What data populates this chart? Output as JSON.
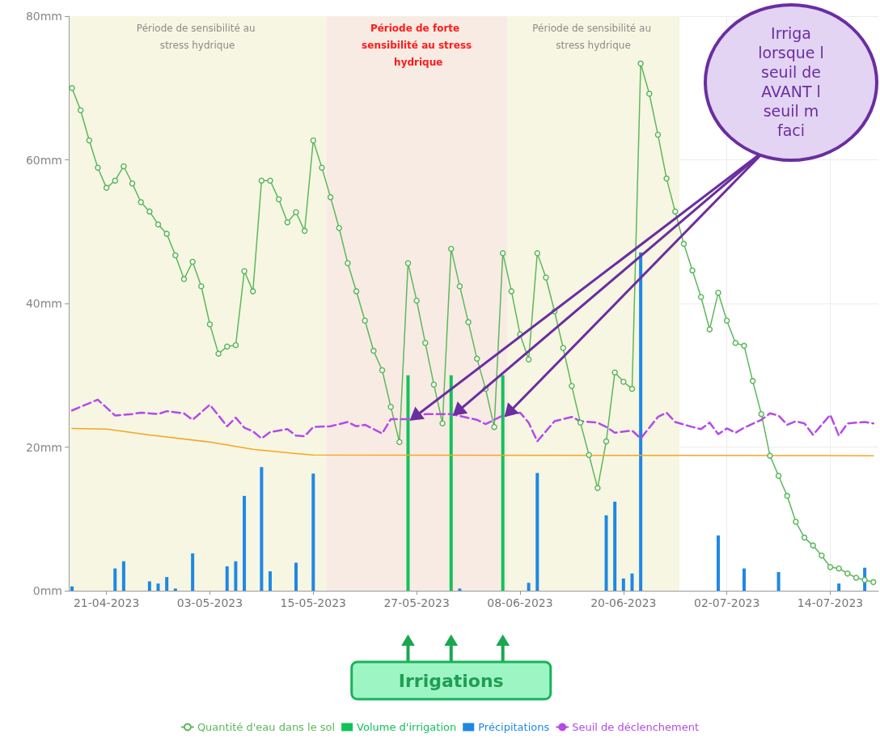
{
  "chart_data": {
    "type": "line",
    "x": [
      "2023-04-17",
      "2023-04-18",
      "2023-04-19",
      "2023-04-20",
      "2023-04-21",
      "2023-04-22",
      "2023-04-23",
      "2023-04-24",
      "2023-04-25",
      "2023-04-26",
      "2023-04-27",
      "2023-04-28",
      "2023-04-29",
      "2023-04-30",
      "2023-05-01",
      "2023-05-02",
      "2023-05-03",
      "2023-05-04",
      "2023-05-05",
      "2023-05-06",
      "2023-05-07",
      "2023-05-08",
      "2023-05-09",
      "2023-05-10",
      "2023-05-11",
      "2023-05-12",
      "2023-05-13",
      "2023-05-14",
      "2023-05-15",
      "2023-05-16",
      "2023-05-17",
      "2023-05-18",
      "2023-05-19",
      "2023-05-20",
      "2023-05-21",
      "2023-05-22",
      "2023-05-23",
      "2023-05-24",
      "2023-05-25",
      "2023-05-26",
      "2023-05-27",
      "2023-05-28",
      "2023-05-29",
      "2023-05-30",
      "2023-05-31",
      "2023-06-01",
      "2023-06-02",
      "2023-06-03",
      "2023-06-04",
      "2023-06-05",
      "2023-06-06",
      "2023-06-07",
      "2023-06-08",
      "2023-06-09",
      "2023-06-10",
      "2023-06-11",
      "2023-06-12",
      "2023-06-13",
      "2023-06-14",
      "2023-06-15",
      "2023-06-16",
      "2023-06-17",
      "2023-06-18",
      "2023-06-19",
      "2023-06-20",
      "2023-06-21",
      "2023-06-22",
      "2023-06-23",
      "2023-06-24",
      "2023-06-25",
      "2023-06-26",
      "2023-06-27",
      "2023-06-28",
      "2023-06-29",
      "2023-06-30",
      "2023-07-01",
      "2023-07-02",
      "2023-07-03",
      "2023-07-04",
      "2023-07-05",
      "2023-07-06",
      "2023-07-07",
      "2023-07-08",
      "2023-07-09",
      "2023-07-10",
      "2023-07-11",
      "2023-07-12",
      "2023-07-13",
      "2023-07-14",
      "2023-07-15",
      "2023-07-16",
      "2023-07-17",
      "2023-07-18",
      "2023-07-19"
    ],
    "series": [
      {
        "name": "Quantité d'eau dans le sol",
        "color": "#5cb85c",
        "marker": "circle",
        "line_style": "solid",
        "values": [
          70.0,
          66.9,
          62.7,
          58.9,
          56.1,
          57.1,
          59.1,
          56.7,
          54.1,
          52.8,
          51.0,
          49.7,
          46.7,
          43.4,
          45.8,
          42.4,
          37.1,
          33.0,
          34.0,
          34.2,
          44.5,
          41.7,
          57.1,
          57.1,
          54.5,
          51.3,
          52.7,
          50.1,
          62.7,
          58.9,
          54.8,
          50.5,
          45.6,
          41.7,
          37.6,
          33.4,
          30.7,
          25.6,
          20.7,
          45.6,
          40.4,
          34.5,
          28.7,
          23.3,
          47.6,
          42.4,
          37.4,
          32.3,
          28.1,
          22.8,
          47.0,
          41.7,
          35.7,
          32.2,
          47.0,
          43.6,
          38.9,
          33.8,
          28.5,
          23.4,
          18.9,
          14.3,
          20.8,
          30.4,
          29.1,
          28.1,
          73.4,
          69.2,
          63.5,
          57.4,
          52.8,
          48.3,
          44.6,
          40.9,
          36.4,
          41.5,
          37.6,
          34.5,
          34.1,
          29.2,
          24.6,
          18.8,
          16.0,
          13.2,
          9.6,
          7.4,
          6.3,
          4.9,
          3.3,
          3.1,
          2.4,
          1.8,
          1.5,
          1.2
        ]
      },
      {
        "name": "Volume d'irrigation",
        "type": "bar",
        "color": "#12c25a",
        "x": [
          "2023-05-26",
          "2023-05-31",
          "2023-06-06"
        ],
        "values": [
          30,
          30,
          30
        ]
      },
      {
        "name": "Précipitations",
        "type": "bar",
        "color": "#1e88e5",
        "x": [
          "2023-04-17",
          "2023-04-22",
          "2023-04-23",
          "2023-04-26",
          "2023-04-27",
          "2023-04-28",
          "2023-04-29",
          "2023-05-01",
          "2023-05-05",
          "2023-05-06",
          "2023-05-07",
          "2023-05-09",
          "2023-05-10",
          "2023-05-13",
          "2023-05-15",
          "2023-06-01",
          "2023-06-09",
          "2023-06-10",
          "2023-06-18",
          "2023-06-19",
          "2023-06-20",
          "2023-06-21",
          "2023-06-22",
          "2023-07-01",
          "2023-07-04",
          "2023-07-08",
          "2023-07-15",
          "2023-07-18"
        ],
        "values": [
          0.6,
          3.1,
          4.1,
          1.3,
          1.0,
          1.9,
          0.3,
          5.2,
          3.4,
          4.1,
          13.2,
          17.2,
          2.7,
          3.9,
          16.3,
          0.3,
          1.1,
          16.4,
          10.5,
          12.4,
          1.7,
          2.4,
          47.1,
          7.7,
          3.1,
          2.6,
          1.0,
          3.2
        ]
      },
      {
        "name": "Seuil de déclenchement",
        "color": "#b44ae8",
        "marker": "none",
        "line_style": "dashed",
        "x": [
          "2023-04-17",
          "2023-04-20",
          "2023-04-22",
          "2023-04-24",
          "2023-04-25",
          "2023-04-27",
          "2023-04-28",
          "2023-04-30",
          "2023-05-01",
          "2023-05-03",
          "2023-05-05",
          "2023-05-06",
          "2023-05-07",
          "2023-05-08",
          "2023-05-09",
          "2023-05-10",
          "2023-05-12",
          "2023-05-13",
          "2023-05-14",
          "2023-05-15",
          "2023-05-17",
          "2023-05-19",
          "2023-05-20",
          "2023-05-21",
          "2023-05-23",
          "2023-05-24",
          "2023-05-26",
          "2023-05-28",
          "2023-05-29",
          "2023-05-31",
          "2023-06-03",
          "2023-06-04",
          "2023-06-06",
          "2023-06-08",
          "2023-06-09",
          "2023-06-10",
          "2023-06-12",
          "2023-06-14",
          "2023-06-15",
          "2023-06-17",
          "2023-06-18",
          "2023-06-19",
          "2023-06-21",
          "2023-06-22",
          "2023-06-24",
          "2023-06-25",
          "2023-06-26",
          "2023-06-28",
          "2023-06-29",
          "2023-06-30",
          "2023-07-01",
          "2023-07-02",
          "2023-07-03",
          "2023-07-04",
          "2023-07-06",
          "2023-07-07",
          "2023-07-08",
          "2023-07-09",
          "2023-07-10",
          "2023-07-11",
          "2023-07-12",
          "2023-07-14",
          "2023-07-15",
          "2023-07-16",
          "2023-07-18",
          "2023-07-19"
        ],
        "values": [
          25.1,
          26.6,
          24.4,
          24.6,
          24.8,
          24.6,
          25.0,
          24.7,
          23.8,
          25.9,
          22.9,
          24.1,
          22.7,
          22.2,
          21.2,
          22.1,
          22.5,
          21.6,
          21.5,
          22.8,
          22.9,
          23.5,
          22.9,
          23.1,
          21.9,
          23.9,
          23.9,
          24.6,
          24.6,
          24.6,
          23.8,
          23.2,
          24.4,
          24.8,
          23.4,
          20.8,
          23.6,
          24.2,
          23.6,
          23.4,
          22.8,
          22.0,
          22.3,
          21.2,
          24.2,
          24.8,
          23.5,
          22.8,
          22.5,
          23.4,
          21.8,
          22.6,
          22.0,
          22.7,
          23.8,
          24.7,
          24.4,
          23.1,
          23.6,
          23.3,
          21.7,
          24.5,
          21.6,
          23.3,
          23.5,
          23.3
        ]
      },
      {
        "color": "#f5a623",
        "marker": "none",
        "line_style": "solid",
        "x": [
          "2023-04-17",
          "2023-04-21",
          "2023-04-26",
          "2023-05-03",
          "2023-05-08",
          "2023-05-13",
          "2023-05-15",
          "2023-07-19"
        ],
        "values": [
          22.6,
          22.5,
          21.7,
          20.7,
          19.7,
          19.1,
          18.9,
          18.8
        ]
      }
    ],
    "xlim": [
      "2023-04-16T15:00",
      "2023-07-19T14:00"
    ],
    "xticks": [
      {
        "value": "2023-04-21",
        "label": "21-04-2023"
      },
      {
        "value": "2023-05-03",
        "label": "03-05-2023"
      },
      {
        "value": "2023-05-15",
        "label": "15-05-2023"
      },
      {
        "value": "2023-05-27",
        "label": "27-05-2023"
      },
      {
        "value": "2023-06-08",
        "label": "08-06-2023"
      },
      {
        "value": "2023-06-20",
        "label": "20-06-2023"
      },
      {
        "value": "2023-07-02",
        "label": "02-07-2023"
      },
      {
        "value": "2023-07-14",
        "label": "14-07-2023"
      }
    ],
    "ylim": [
      0,
      80
    ],
    "yticks": [
      {
        "value": 0,
        "label": "0mm"
      },
      {
        "value": 20,
        "label": "20mm"
      },
      {
        "value": 40,
        "label": "40mm"
      },
      {
        "value": 60,
        "label": "60mm"
      },
      {
        "value": 80,
        "label": "80mm"
      }
    ],
    "bands": [
      {
        "axis": "x",
        "from": "2023-04-16T15:00",
        "to": "2023-05-16T12:00",
        "label": "Période de sensibilité au stress hydrique",
        "color": "#f7f6e2"
      },
      {
        "axis": "x",
        "from": "2023-05-16T12:00",
        "to": "2023-06-06T12:00",
        "label": "Période de forte sensibilité au stress hydrique",
        "color": "#f8ebe3"
      },
      {
        "axis": "x",
        "from": "2023-06-06T12:00",
        "to": "2023-06-26T12:00",
        "label": "Période de sensibilité au stress hydrique",
        "color": "#f7f6e2"
      }
    ],
    "annotations": [
      "Irriga\nlorsque l\nseuil de\nAVANT l\nseuil m\nfaci",
      "Irrigations"
    ],
    "grid": true,
    "legend": "bottom"
  }
}
